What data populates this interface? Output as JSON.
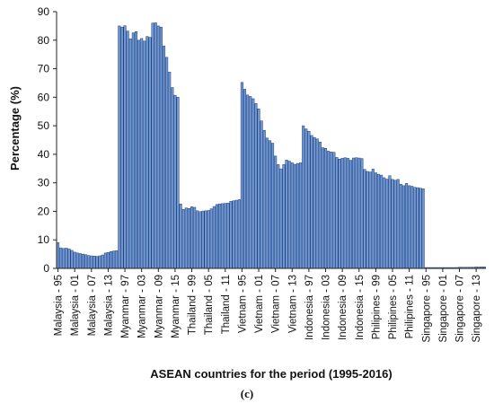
{
  "figure": {
    "caption": "(c)"
  },
  "chart_data": {
    "type": "bar",
    "xlabel": "ASEAN countries for the period (1995-2016)",
    "ylabel": "Percentage (%)",
    "ylim": [
      0,
      90
    ],
    "yticks": [
      0,
      10,
      20,
      30,
      40,
      50,
      60,
      70,
      80,
      90
    ],
    "grid": false,
    "legend": "none",
    "colors": {
      "bar_fill": "#6f97d4",
      "bar_stroke": "#1f3f78",
      "axis": "#222222",
      "text": "#111111"
    },
    "x_tick_labels": [
      "Malaysia - 95",
      "Malaysia - 01",
      "Malaysia - 07",
      "Malaysia - 13",
      "Myanmar - 97",
      "Myanmar - 03",
      "Myanmar - 09",
      "Myanmar - 15",
      "Thailand - 99",
      "Thailand - 05",
      "Thailand - 11",
      "Vietnam - 95",
      "Vietnam - 01",
      "Vietnam - 07",
      "Vietnam - 13",
      "Indonesia - 97",
      "Indonesia - 03",
      "Indonesia - 09",
      "Indonesia - 15",
      "Philipines - 99",
      "Philipines - 05",
      "Philipines - 11",
      "Singapore - 95",
      "Singapore - 01",
      "Singapore - 07",
      "Singapore - 13"
    ],
    "x_tick_positions": [
      0,
      6,
      12,
      18,
      24,
      30,
      36,
      42,
      48,
      54,
      60,
      66,
      72,
      78,
      84,
      90,
      96,
      102,
      108,
      114,
      120,
      126,
      132,
      138,
      144,
      150
    ],
    "values": [
      9,
      7.2,
      7,
      7.1,
      6.8,
      6.3,
      5.7,
      5.4,
      5.2,
      5,
      4.8,
      4.5,
      4.4,
      4.3,
      4.2,
      4.4,
      4.7,
      5.4,
      5.6,
      5.9,
      6.1,
      6.2,
      85,
      84.6,
      85.1,
      83.2,
      80.5,
      82.6,
      83,
      80,
      80.6,
      79.7,
      81.3,
      81,
      86,
      86.1,
      85,
      84.6,
      78,
      74,
      68.8,
      63.4,
      60.7,
      60,
      22.6,
      20.7,
      21.2,
      21,
      21.6,
      21.4,
      20.2,
      19.9,
      20.1,
      20.2,
      20.3,
      20.9,
      21.7,
      22.4,
      22.6,
      22.7,
      22.8,
      22.9,
      23.5,
      23.7,
      23.9,
      24.1,
      65.2,
      62.8,
      60.8,
      60.3,
      59.5,
      57.8,
      55.9,
      51.7,
      48.4,
      45.7,
      44.8,
      43.9,
      39.4,
      36.4,
      34.9,
      36.4,
      38,
      37.6,
      37,
      36.5,
      36.8,
      37,
      50,
      48.9,
      48.1,
      46.6,
      45.9,
      45.4,
      44.3,
      42.3,
      42.1,
      41.1,
      40.8,
      40.7,
      38.9,
      38.3,
      38.6,
      38.8,
      38.6,
      37.9,
      38.7,
      38.8,
      38.7,
      38.5,
      34.7,
      34,
      33.8,
      34.8,
      33.5,
      33,
      32.7,
      31.8,
      31.3,
      32.5,
      31.2,
      30.9,
      31.2,
      29.5,
      29,
      29.8,
      29,
      28.8,
      28.4,
      28.3,
      28.1,
      27.9,
      0.3,
      0.3,
      0.3,
      0.3,
      0.3,
      0.3,
      0.3,
      0.3,
      0.3,
      0.3,
      0.3,
      0.3,
      0.4,
      0.4,
      0.4,
      0.4,
      0.4,
      0.4,
      0.5,
      0.5,
      0.5,
      0.5
    ]
  }
}
